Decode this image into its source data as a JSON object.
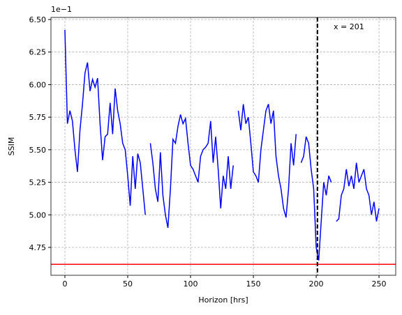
{
  "chart_data": {
    "type": "line",
    "xlabel": "Horizon [hrs]",
    "ylabel": "SSIM",
    "offset_label": "1e−1",
    "annotation": "x = 201",
    "vline": 201,
    "vline_color": "#000000",
    "hline": 4.62,
    "hline_color": "#ff0000",
    "xlim": [
      -11.1,
      263.3
    ],
    "ylim": [
      4.536,
      6.516
    ],
    "xticks": [
      0,
      50,
      100,
      150,
      200,
      250
    ],
    "yticks": [
      {
        "value": 4.75,
        "label": "4.75"
      },
      {
        "value": 5,
        "label": "5.00"
      },
      {
        "value": 5.25,
        "label": "5.25"
      },
      {
        "value": 5.5,
        "label": "5.50"
      },
      {
        "value": 5.75,
        "label": "5.75"
      },
      {
        "value": 6,
        "label": "6.00"
      },
      {
        "value": 6.25,
        "label": "6.25"
      },
      {
        "value": 6.5,
        "label": "6.50"
      }
    ],
    "grid": true,
    "x": [
      0,
      2,
      4,
      6,
      8,
      10,
      12,
      14,
      16,
      18,
      20,
      22,
      24,
      26,
      28,
      30,
      32,
      34,
      36,
      38,
      40,
      42,
      44,
      46,
      48,
      50,
      52,
      54,
      56,
      58,
      60,
      62,
      64,
      66,
      68,
      70,
      72,
      74,
      76,
      78,
      80,
      82,
      84,
      86,
      88,
      90,
      92,
      94,
      96,
      98,
      100,
      102,
      104,
      106,
      108,
      110,
      112,
      114,
      116,
      118,
      120,
      122,
      124,
      126,
      128,
      130,
      132,
      134,
      136,
      138,
      140,
      142,
      144,
      146,
      148,
      150,
      152,
      154,
      156,
      158,
      160,
      162,
      164,
      166,
      168,
      170,
      172,
      174,
      176,
      178,
      180,
      182,
      184,
      186,
      188,
      190,
      192,
      194,
      196,
      198,
      200,
      202,
      204,
      206,
      208,
      210,
      212,
      214,
      216,
      218,
      220,
      222,
      224,
      226,
      228,
      230,
      232,
      234,
      236,
      238,
      240,
      242,
      244,
      246,
      248,
      250
    ],
    "series": [
      {
        "name": "SSIM",
        "color": "#0000ff",
        "values": [
          6.42,
          5.7,
          5.8,
          5.72,
          5.5,
          5.33,
          5.65,
          5.85,
          6.09,
          6.17,
          5.95,
          6.04,
          5.98,
          6.05,
          5.7,
          5.42,
          5.6,
          5.62,
          5.86,
          5.62,
          5.97,
          5.8,
          5.7,
          5.55,
          5.5,
          5.3,
          5.07,
          5.45,
          5.2,
          5.47,
          5.4,
          5.2,
          5.0,
          null,
          5.55,
          5.4,
          5.2,
          5.1,
          5.48,
          5.15,
          5.0,
          4.9,
          5.2,
          5.58,
          5.55,
          5.68,
          5.77,
          5.7,
          5.74,
          5.55,
          5.38,
          5.35,
          5.3,
          5.25,
          5.45,
          5.5,
          5.52,
          5.55,
          5.72,
          5.4,
          5.6,
          5.35,
          5.05,
          5.3,
          5.2,
          5.45,
          5.2,
          5.38,
          null,
          5.8,
          5.65,
          5.85,
          5.7,
          5.75,
          5.55,
          5.33,
          5.3,
          5.25,
          5.5,
          5.65,
          5.8,
          5.85,
          5.7,
          5.8,
          5.45,
          5.3,
          5.2,
          5.05,
          4.98,
          5.2,
          5.55,
          5.38,
          5.62,
          null,
          5.4,
          5.45,
          5.6,
          5.55,
          5.35,
          5.2,
          4.75,
          4.65,
          4.95,
          5.25,
          5.15,
          5.3,
          5.25,
          null,
          4.95,
          4.97,
          5.15,
          5.2,
          5.35,
          5.22,
          5.3,
          5.2,
          5.4,
          5.25,
          5.3,
          5.35,
          5.2,
          5.15,
          5.0,
          5.1,
          4.95,
          5.05
        ]
      }
    ]
  }
}
